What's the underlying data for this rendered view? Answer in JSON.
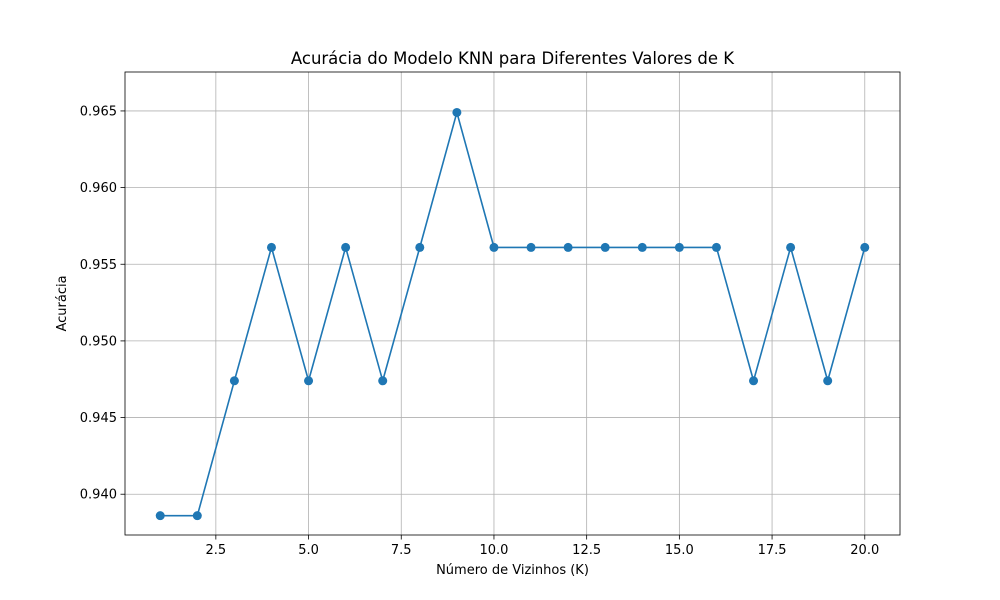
{
  "chart_data": {
    "type": "line",
    "title": "Acurácia do Modelo KNN para Diferentes Valores de K",
    "xlabel": "Número de Vizinhos (K)",
    "ylabel": "Acurácia",
    "x": [
      1,
      2,
      3,
      4,
      5,
      6,
      7,
      8,
      9,
      10,
      11,
      12,
      13,
      14,
      15,
      16,
      17,
      18,
      19,
      20
    ],
    "series": [
      {
        "values": [
          0.9386,
          0.9386,
          0.9474,
          0.9561,
          0.9474,
          0.9561,
          0.9474,
          0.9561,
          0.9649,
          0.9561,
          0.9561,
          0.9561,
          0.9561,
          0.9561,
          0.9561,
          0.9561,
          0.9474,
          0.9561,
          0.9474,
          0.9561
        ],
        "color": "#1f77b4",
        "marker": "circle"
      }
    ],
    "xlim": [
      0.05,
      20.95
    ],
    "ylim": [
      0.93734,
      0.96754
    ],
    "xticks": [
      2.5,
      5.0,
      7.5,
      10.0,
      12.5,
      15.0,
      17.5,
      20.0
    ],
    "xtick_labels": [
      "2.5",
      "5.0",
      "7.5",
      "10.0",
      "12.5",
      "15.0",
      "17.5",
      "20.0"
    ],
    "yticks": [
      0.94,
      0.945,
      0.95,
      0.955,
      0.96,
      0.965
    ],
    "ytick_labels": [
      "0.940",
      "0.945",
      "0.950",
      "0.955",
      "0.960",
      "0.965"
    ],
    "grid": true,
    "legend": "none"
  }
}
